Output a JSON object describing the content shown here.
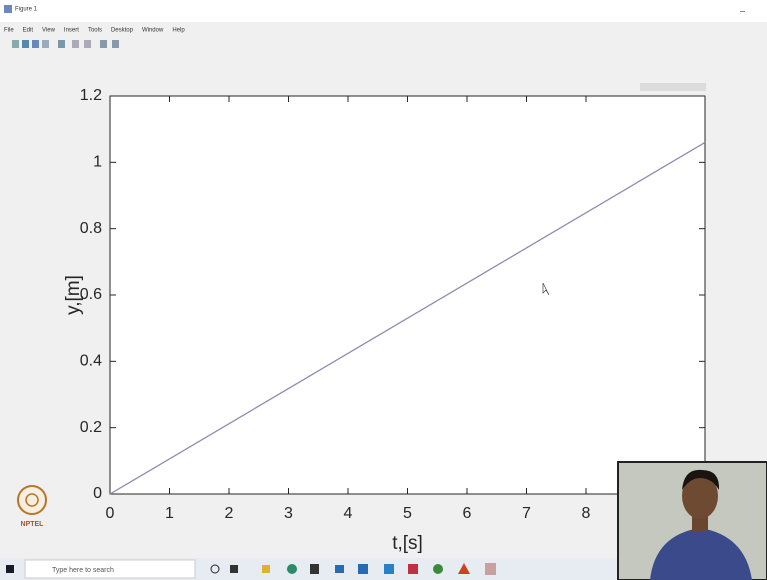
{
  "window": {
    "title": "Figure 1",
    "menu": [
      "File",
      "Edit",
      "View",
      "Insert",
      "Tools",
      "Desktop",
      "Window",
      "Help"
    ]
  },
  "logo": "NPTEL",
  "taskbar": {
    "search": "Type here to search"
  },
  "chart_data": {
    "type": "line",
    "x_label": "t,[s]",
    "y_label": "y,[m]",
    "x": [
      0,
      10
    ],
    "series": [
      {
        "values": [
          0,
          1.06
        ],
        "color": "#8c8cb4"
      }
    ],
    "xlim": [
      0,
      10
    ],
    "ylim": [
      0,
      1.2
    ],
    "xticks": [
      0,
      1,
      2,
      3,
      4,
      5,
      6,
      7,
      8
    ],
    "yticks": [
      0,
      0.2,
      0.4,
      0.6,
      0.8,
      1,
      1.2
    ],
    "grid": false
  }
}
